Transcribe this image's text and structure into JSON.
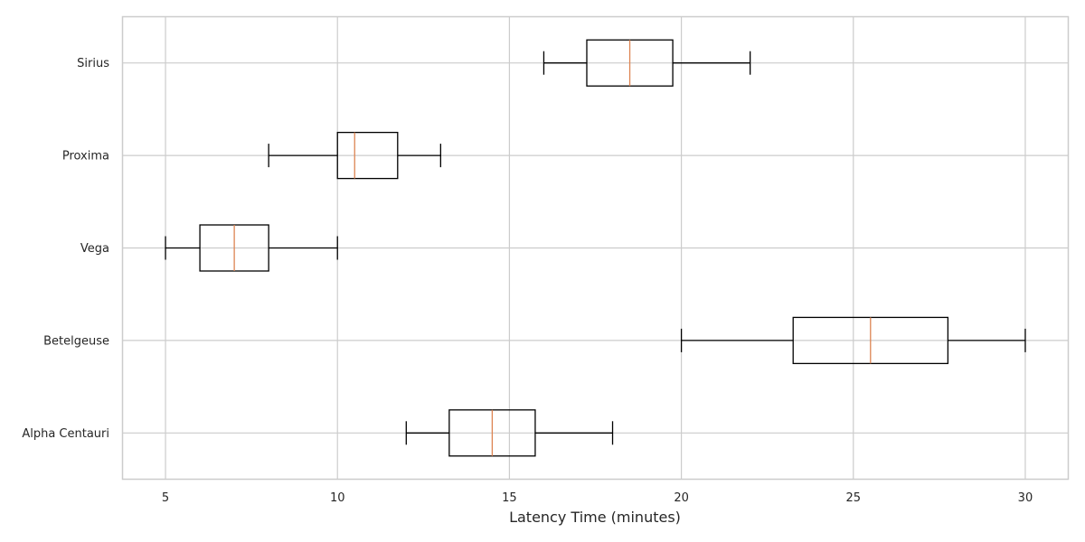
{
  "chart_data": {
    "type": "box",
    "orientation": "horizontal",
    "title": "",
    "xlabel": "Latency Time (minutes)",
    "ylabel": "",
    "xlim": [
      3.75,
      31.25
    ],
    "xticks": [
      5,
      10,
      15,
      20,
      25,
      30
    ],
    "grid": true,
    "categories": [
      "Alpha Centauri",
      "Betelgeuse",
      "Vega",
      "Proxima",
      "Sirius"
    ],
    "boxes": [
      {
        "category": "Alpha Centauri",
        "whisker_low": 12,
        "q1": 13.25,
        "median": 14.5,
        "q3": 15.75,
        "whisker_high": 18
      },
      {
        "category": "Betelgeuse",
        "whisker_low": 20,
        "q1": 23.25,
        "median": 25.5,
        "q3": 27.75,
        "whisker_high": 30
      },
      {
        "category": "Vega",
        "whisker_low": 5,
        "q1": 6,
        "median": 7,
        "q3": 8,
        "whisker_high": 10
      },
      {
        "category": "Proxima",
        "whisker_low": 8,
        "q1": 10,
        "median": 10.5,
        "q3": 11.75,
        "whisker_high": 13
      },
      {
        "category": "Sirius",
        "whisker_low": 16,
        "q1": 17.25,
        "median": 18.5,
        "q3": 19.75,
        "whisker_high": 22
      }
    ],
    "colors": {
      "box": "#000000",
      "median": "#dd8452",
      "grid": "#cccccc",
      "frame": "#cccccc"
    }
  }
}
